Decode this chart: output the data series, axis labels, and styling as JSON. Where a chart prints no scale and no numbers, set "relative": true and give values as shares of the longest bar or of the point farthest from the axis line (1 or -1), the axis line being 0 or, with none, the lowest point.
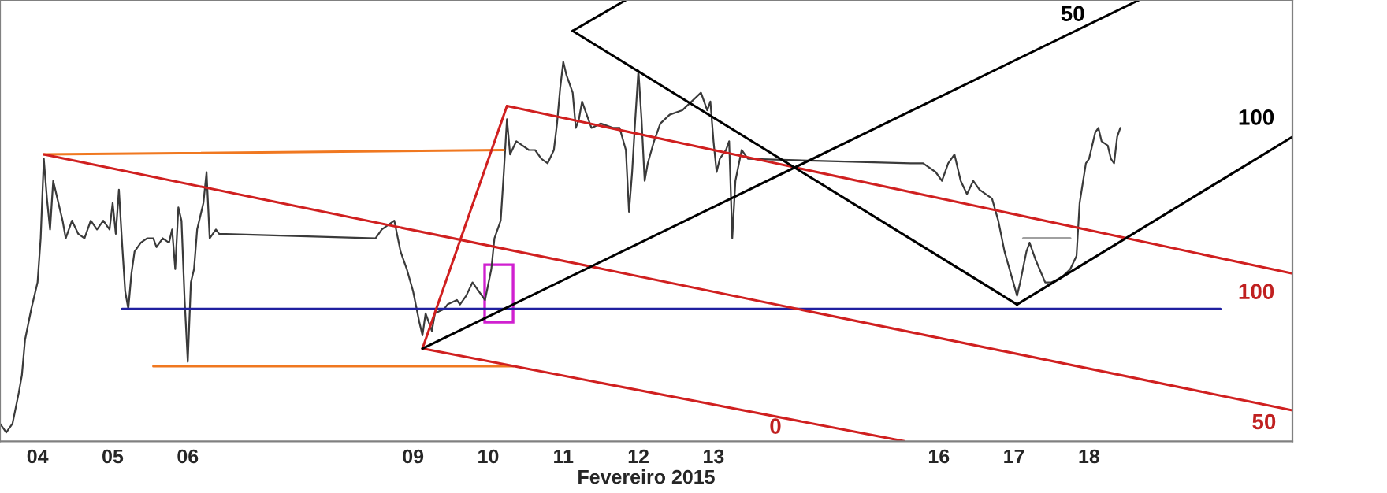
{
  "chart_data": {
    "type": "line",
    "relative": true,
    "xlabel": "Fevereiro 2015",
    "xlim": [
      "2015-02-04T00:00",
      "2015-02-21T05:00"
    ],
    "xticks": [
      {
        "value": "2015-02-04T12:00",
        "label": "04"
      },
      {
        "value": "2015-02-05T12:00",
        "label": "05"
      },
      {
        "value": "2015-02-06T12:00",
        "label": "06"
      },
      {
        "value": "2015-02-09T12:00",
        "label": "09"
      },
      {
        "value": "2015-02-10T12:00",
        "label": "10"
      },
      {
        "value": "2015-02-11T12:00",
        "label": "11"
      },
      {
        "value": "2015-02-12T12:00",
        "label": "12"
      },
      {
        "value": "2015-02-13T12:00",
        "label": "13"
      },
      {
        "value": "2015-02-16T12:00",
        "label": "16"
      },
      {
        "value": "2015-02-17T12:00",
        "label": "17"
      },
      {
        "value": "2015-02-18T12:00",
        "label": "18"
      }
    ],
    "tick_labels": "x",
    "grid": false,
    "legend": false,
    "marker": "none",
    "line_style": "solid",
    "series": [
      {
        "color": "#3a3a3a",
        "x": [
          "2015-02-04T00:00",
          "2015-02-04T02:00",
          "2015-02-04T04:00",
          "2015-02-04T06:00",
          "2015-02-04T07:00",
          "2015-02-04T08:00",
          "2015-02-04T10:00",
          "2015-02-04T12:00",
          "2015-02-04T13:00",
          "2015-02-04T14:00",
          "2015-02-04T15:00",
          "2015-02-04T16:00",
          "2015-02-04T17:00",
          "2015-02-04T18:00",
          "2015-02-04T20:00",
          "2015-02-04T21:00",
          "2015-02-04T23:00",
          "2015-02-05T01:00",
          "2015-02-05T03:00",
          "2015-02-05T05:00",
          "2015-02-05T07:00",
          "2015-02-05T09:00",
          "2015-02-05T11:00",
          "2015-02-05T12:00",
          "2015-02-05T13:00",
          "2015-02-05T14:00",
          "2015-02-05T15:00",
          "2015-02-05T16:00",
          "2015-02-05T17:00",
          "2015-02-05T18:00",
          "2015-02-05T19:00",
          "2015-02-05T21:00",
          "2015-02-05T23:00",
          "2015-02-06T01:00",
          "2015-02-06T02:00",
          "2015-02-06T04:00",
          "2015-02-06T06:00",
          "2015-02-06T07:00",
          "2015-02-06T08:00",
          "2015-02-06T09:00",
          "2015-02-06T10:00",
          "2015-02-06T11:00",
          "2015-02-06T12:00",
          "2015-02-06T13:00",
          "2015-02-06T14:00",
          "2015-02-06T15:00",
          "2015-02-06T17:00",
          "2015-02-06T18:00",
          "2015-02-06T19:00",
          "2015-02-06T21:00",
          "2015-02-06T22:00",
          "2015-02-09T00:00",
          "2015-02-09T02:00",
          "2015-02-09T06:00",
          "2015-02-09T08:00",
          "2015-02-09T10:00",
          "2015-02-09T12:00",
          "2015-02-09T14:00",
          "2015-02-09T15:00",
          "2015-02-09T16:00",
          "2015-02-09T18:00",
          "2015-02-09T19:00",
          "2015-02-09T22:00",
          "2015-02-09T23:00",
          "2015-02-10T02:00",
          "2015-02-10T03:00",
          "2015-02-10T05:00",
          "2015-02-10T07:00",
          "2015-02-10T09:00",
          "2015-02-10T11:00",
          "2015-02-10T13:00",
          "2015-02-10T14:00",
          "2015-02-10T16:00",
          "2015-02-10T17:00",
          "2015-02-10T18:00",
          "2015-02-10T19:00",
          "2015-02-10T21:00",
          "2015-02-10T23:00",
          "2015-02-11T01:00",
          "2015-02-11T03:00",
          "2015-02-11T05:00",
          "2015-02-11T07:00",
          "2015-02-11T09:00",
          "2015-02-11T10:00",
          "2015-02-11T11:00",
          "2015-02-11T12:00",
          "2015-02-11T13:00",
          "2015-02-11T15:00",
          "2015-02-11T16:00",
          "2015-02-11T17:00",
          "2015-02-11T18:00",
          "2015-02-11T20:00",
          "2015-02-11T21:00",
          "2015-02-12T00:00",
          "2015-02-12T04:00",
          "2015-02-12T06:00",
          "2015-02-12T08:00",
          "2015-02-12T09:00",
          "2015-02-12T10:00",
          "2015-02-12T11:00",
          "2015-02-12T12:00",
          "2015-02-12T13:00",
          "2015-02-12T14:00",
          "2015-02-12T15:00",
          "2015-02-12T17:00",
          "2015-02-12T19:00",
          "2015-02-12T22:00",
          "2015-02-13T02:00",
          "2015-02-13T05:00",
          "2015-02-13T08:00",
          "2015-02-13T10:00",
          "2015-02-13T11:00",
          "2015-02-13T12:00",
          "2015-02-13T13:00",
          "2015-02-13T14:00",
          "2015-02-13T16:00",
          "2015-02-13T17:00",
          "2015-02-13T18:00",
          "2015-02-13T19:00",
          "2015-02-13T21:00",
          "2015-02-13T23:00",
          "2015-02-16T03:00",
          "2015-02-16T07:00",
          "2015-02-16T11:00",
          "2015-02-16T13:00",
          "2015-02-16T15:00",
          "2015-02-16T17:00",
          "2015-02-16T19:00",
          "2015-02-16T21:00",
          "2015-02-16T23:00",
          "2015-02-17T01:00",
          "2015-02-17T05:00",
          "2015-02-17T07:00",
          "2015-02-17T09:00",
          "2015-02-17T11:00",
          "2015-02-17T13:00",
          "2015-02-17T14:00",
          "2015-02-17T16:00",
          "2015-02-17T17:00",
          "2015-02-17T19:00",
          "2015-02-17T22:00",
          "2015-02-18T00:00",
          "2015-02-18T03:00",
          "2015-02-18T06:00",
          "2015-02-18T08:00",
          "2015-02-18T09:00",
          "2015-02-18T11:00",
          "2015-02-18T12:00",
          "2015-02-18T14:00",
          "2015-02-18T15:00",
          "2015-02-18T16:00",
          "2015-02-18T18:00",
          "2015-02-18T19:00",
          "2015-02-18T20:00",
          "2015-02-18T21:00",
          "2015-02-18T22:00"
        ],
        "values": [
          0.04,
          0.02,
          0.04,
          0.11,
          0.15,
          0.23,
          0.3,
          0.36,
          0.46,
          0.64,
          0.55,
          0.48,
          0.59,
          0.56,
          0.5,
          0.46,
          0.5,
          0.47,
          0.46,
          0.5,
          0.48,
          0.5,
          0.48,
          0.54,
          0.47,
          0.57,
          0.45,
          0.34,
          0.3,
          0.38,
          0.43,
          0.45,
          0.46,
          0.46,
          0.44,
          0.46,
          0.45,
          0.48,
          0.39,
          0.53,
          0.5,
          0.32,
          0.18,
          0.36,
          0.39,
          0.48,
          0.54,
          0.61,
          0.46,
          0.48,
          0.47,
          0.46,
          0.48,
          0.5,
          0.43,
          0.39,
          0.34,
          0.27,
          0.24,
          0.29,
          0.25,
          0.29,
          0.3,
          0.31,
          0.32,
          0.31,
          0.33,
          0.36,
          0.34,
          0.32,
          0.39,
          0.46,
          0.5,
          0.61,
          0.73,
          0.65,
          0.68,
          0.67,
          0.66,
          0.66,
          0.64,
          0.63,
          0.66,
          0.72,
          0.8,
          0.86,
          0.83,
          0.79,
          0.71,
          0.73,
          0.77,
          0.73,
          0.71,
          0.72,
          0.71,
          0.71,
          0.66,
          0.52,
          0.61,
          0.73,
          0.84,
          0.73,
          0.59,
          0.63,
          0.68,
          0.72,
          0.74,
          0.75,
          0.77,
          0.79,
          0.75,
          0.77,
          0.68,
          0.61,
          0.64,
          0.66,
          0.68,
          0.46,
          0.59,
          0.66,
          0.64,
          0.63,
          0.63,
          0.61,
          0.59,
          0.63,
          0.65,
          0.59,
          0.56,
          0.59,
          0.57,
          0.55,
          0.5,
          0.43,
          0.38,
          0.33,
          0.36,
          0.43,
          0.45,
          0.41,
          0.36,
          0.36,
          0.37,
          0.39,
          0.42,
          0.54,
          0.63,
          0.64,
          0.7,
          0.71,
          0.68,
          0.67,
          0.64,
          0.63,
          0.69,
          0.71
        ]
      },
      {
        "color": "#f07820",
        "x": [
          "2015-02-04T14:00",
          "2015-02-10T17:00"
        ],
        "values": [
          0.65,
          0.66
        ]
      },
      {
        "color": "#f07820",
        "x": [
          "2015-02-06T01:00",
          "2015-02-10T20:00"
        ],
        "values": [
          0.17,
          0.17
        ]
      },
      {
        "color": "#2020a0",
        "x": [
          "2015-02-05T15:00",
          "2015-02-20T06:00"
        ],
        "values": [
          0.3,
          0.3
        ]
      },
      {
        "color": "#d02020",
        "x": [
          "2015-02-09T15:00",
          "2015-02-10T18:00"
        ],
        "values": [
          0.21,
          0.76
        ]
      },
      {
        "color": "#d02020",
        "x": [
          "2015-02-10T18:00",
          "2015-02-21T05:00"
        ],
        "values": [
          0.76,
          0.38
        ]
      },
      {
        "color": "#d02020",
        "x": [
          "2015-02-04T14:00",
          "2015-02-21T05:00"
        ],
        "values": [
          0.65,
          0.07
        ]
      },
      {
        "color": "#d02020",
        "x": [
          "2015-02-09T15:00",
          "2015-02-16T01:00"
        ],
        "values": [
          0.21,
          0.0
        ]
      },
      {
        "color": "#000000",
        "x": [
          "2015-02-09T15:00",
          "2015-02-19T04:00"
        ],
        "values": [
          0.21,
          1.0
        ]
      },
      {
        "color": "#000000",
        "x": [
          "2015-02-11T15:00",
          "2015-02-12T08:00"
        ],
        "values": [
          0.93,
          1.0
        ]
      },
      {
        "color": "#000000",
        "x": [
          "2015-02-11T15:00",
          "2015-02-17T13:00"
        ],
        "values": [
          0.93,
          0.31
        ]
      },
      {
        "color": "#000000",
        "x": [
          "2015-02-17T13:00",
          "2015-02-21T05:00"
        ],
        "values": [
          0.31,
          0.69
        ]
      },
      {
        "color": "#a0a0a0",
        "x": [
          "2015-02-17T15:00",
          "2015-02-18T06:00"
        ],
        "values": [
          0.46,
          0.46
        ]
      }
    ],
    "annotations": [
      "50",
      "100",
      "100",
      "50",
      "0"
    ]
  }
}
